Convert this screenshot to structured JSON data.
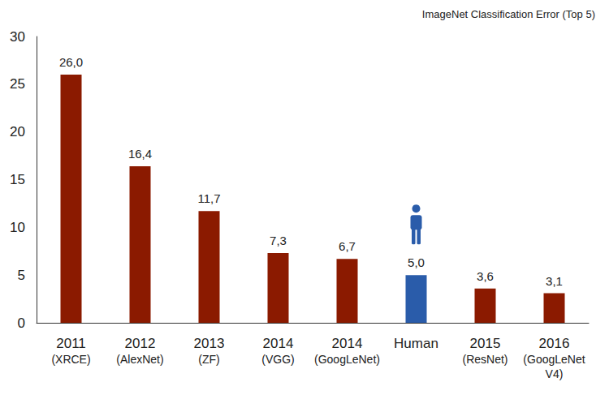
{
  "chart_data": {
    "type": "bar",
    "title": "ImageNet Classification Error (Top 5)",
    "categories": [
      "2011\n(XRCE)",
      "2012\n(AlexNet)",
      "2013\n(ZF)",
      "2014\n(VGG)",
      "2014\n(GoogLeNet)",
      "Human",
      "2015\n(ResNet)",
      "2016\n(GoogLeNet\nV4)"
    ],
    "values": [
      26.0,
      16.4,
      11.7,
      7.3,
      6.7,
      5.0,
      3.6,
      3.1
    ],
    "value_labels": [
      "26,0",
      "16,4",
      "11,7",
      "7,3",
      "6,7",
      "5,0",
      "3,6",
      "3,1"
    ],
    "colors": [
      "#8b1a00",
      "#8b1a00",
      "#8b1a00",
      "#8b1a00",
      "#8b1a00",
      "#2a5caa",
      "#8b1a00",
      "#8b1a00"
    ],
    "ylim": [
      0,
      30
    ],
    "yticks": [
      0,
      5,
      10,
      15,
      20,
      25,
      30
    ],
    "grid": false,
    "data_labels": true
  }
}
